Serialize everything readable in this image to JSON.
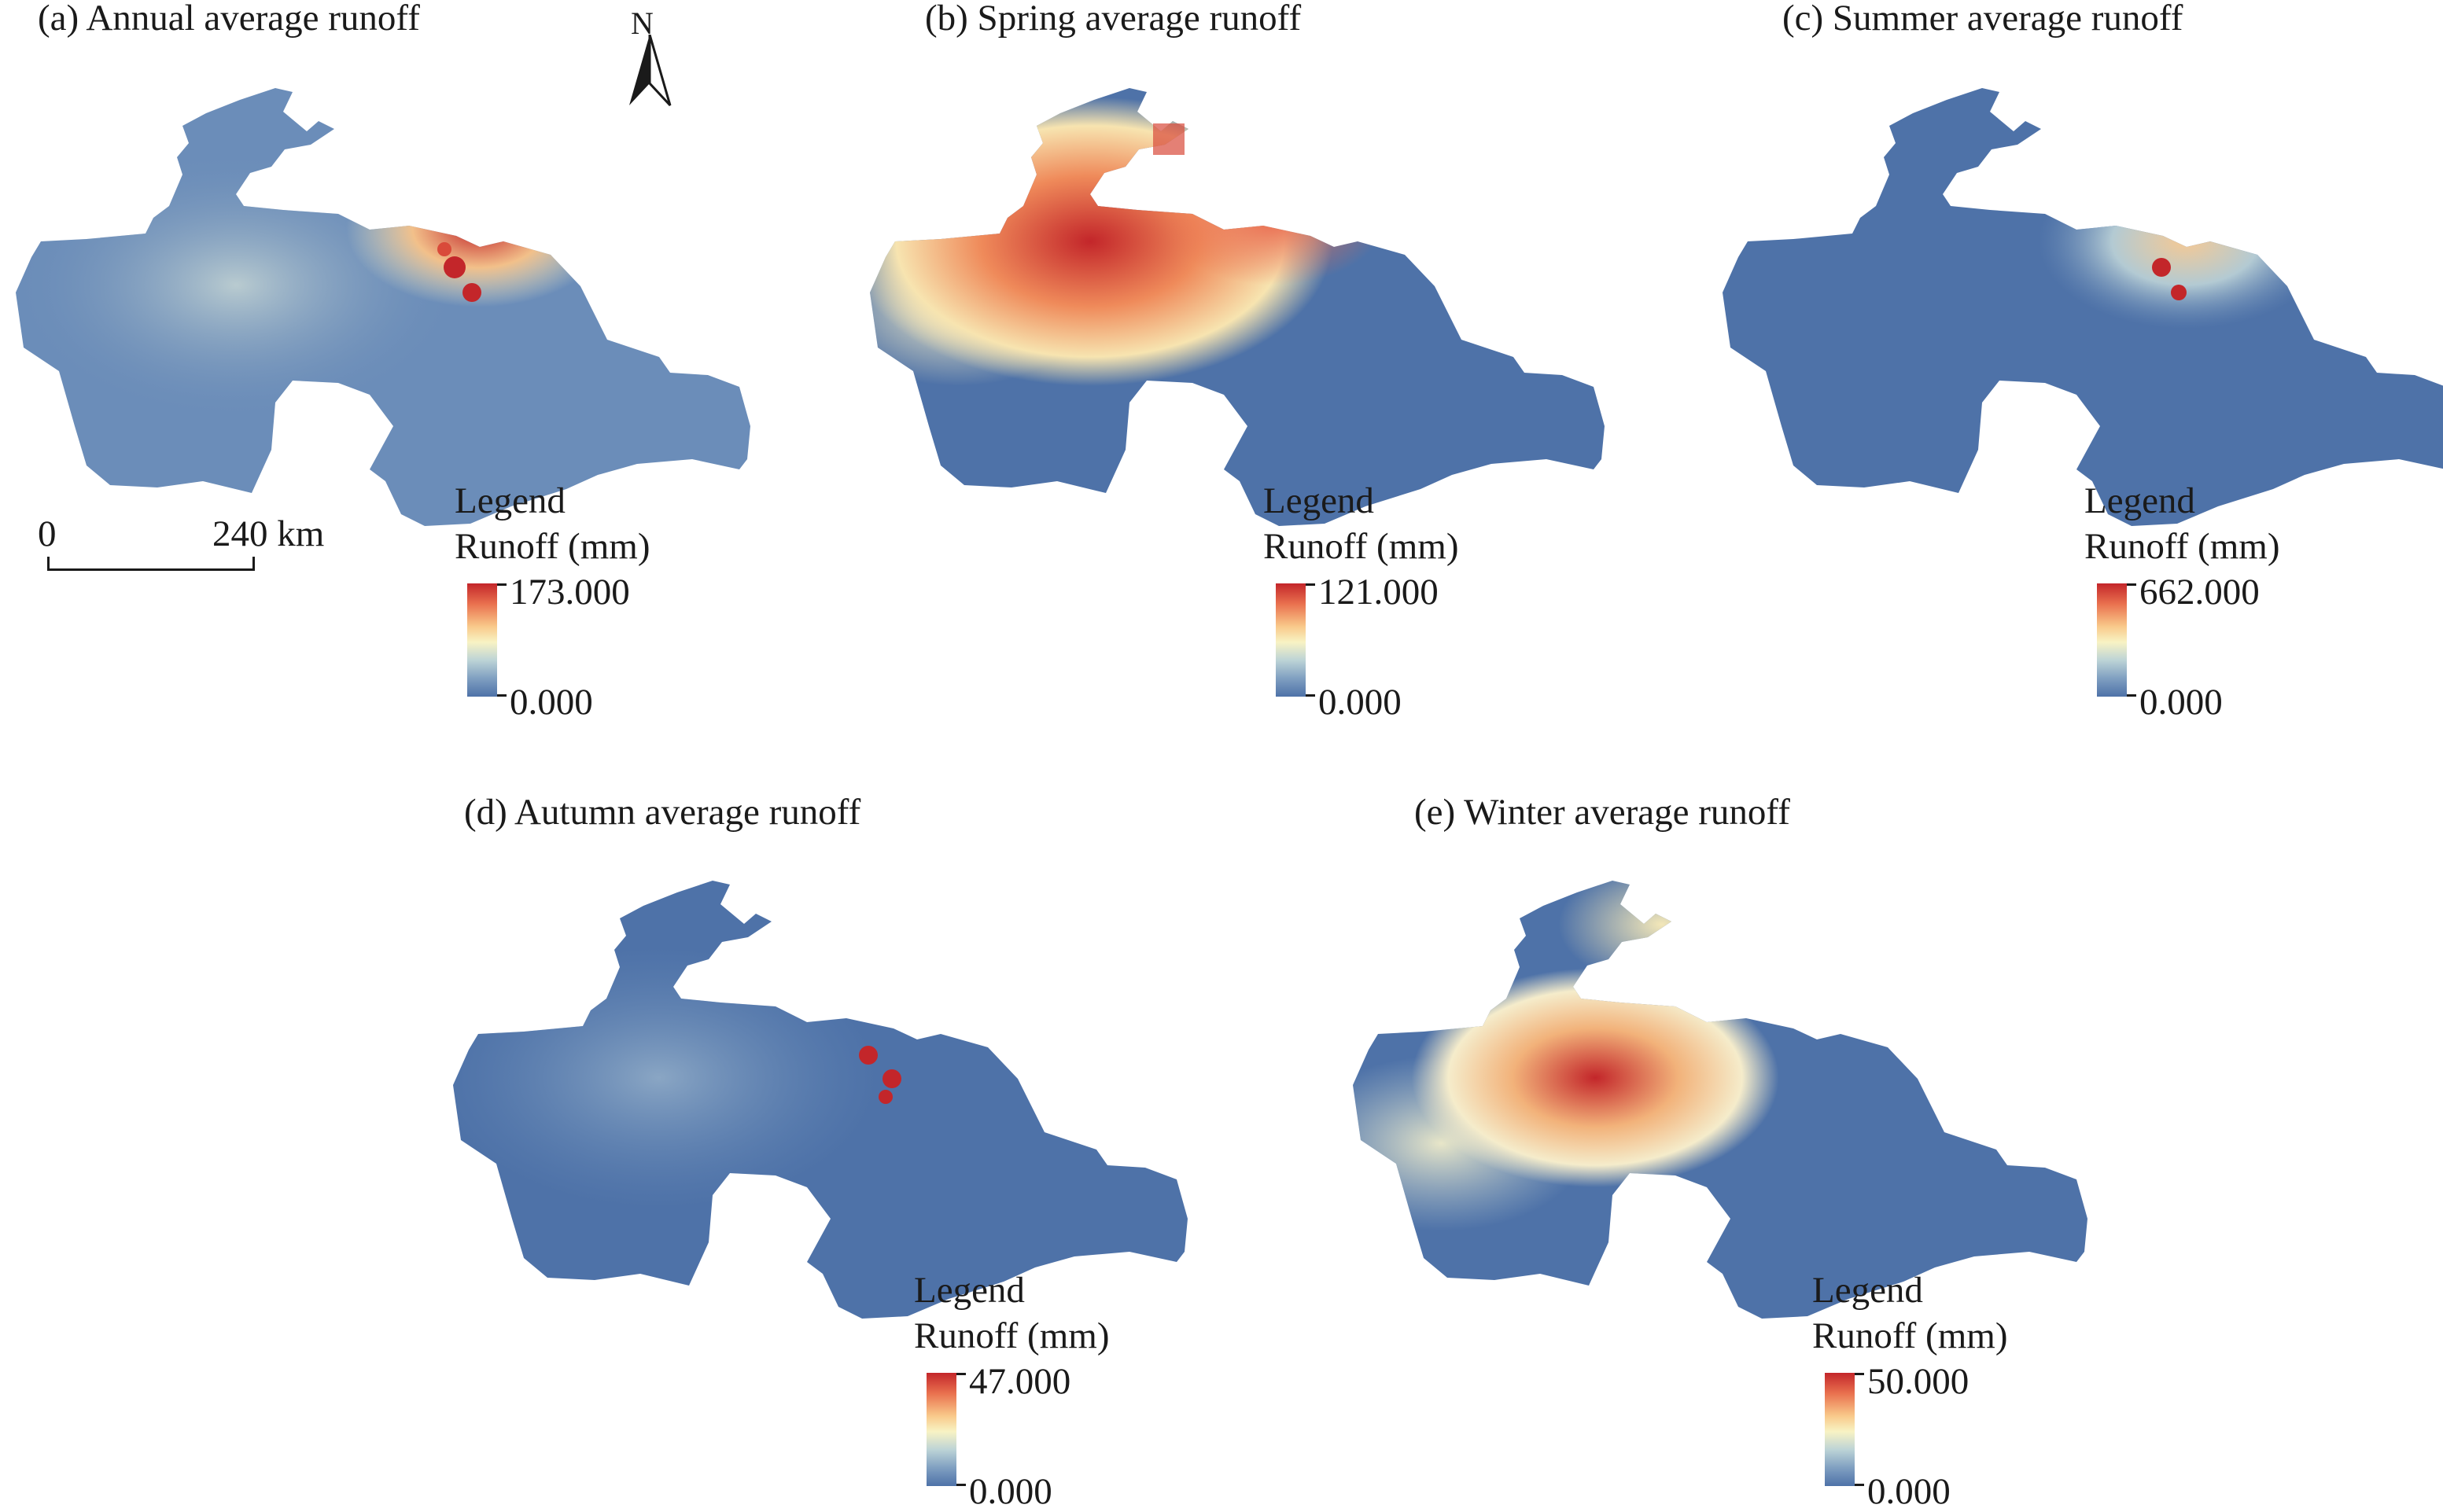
{
  "figure": {
    "panels": [
      {
        "id": "a",
        "title": "(a) Annual average runoff",
        "legend_heading": "Legend",
        "legend_unit": "Runoff (mm)",
        "max_label": "173.000",
        "min_label": "0.000",
        "max_value": 173,
        "min_value": 0
      },
      {
        "id": "b",
        "title": "(b) Spring average runoff",
        "legend_heading": "Legend",
        "legend_unit": "Runoff (mm)",
        "max_label": "121.000",
        "min_label": "0.000",
        "max_value": 121,
        "min_value": 0
      },
      {
        "id": "c",
        "title": "(c) Summer average runoff",
        "legend_heading": "Legend",
        "legend_unit": "Runoff (mm)",
        "max_label": "662.000",
        "min_label": "0.000",
        "max_value": 662,
        "min_value": 0
      },
      {
        "id": "d",
        "title": "(d) Autumn average runoff",
        "legend_heading": "Legend",
        "legend_unit": "Runoff (mm)",
        "max_label": "47.000",
        "min_label": "0.000",
        "max_value": 47,
        "min_value": 0
      },
      {
        "id": "e",
        "title": "(e) Winter average runoff",
        "legend_heading": "Legend",
        "legend_unit": "Runoff (mm)",
        "max_label": "50.000",
        "min_label": "0.000",
        "max_value": 50,
        "min_value": 0
      }
    ],
    "north_arrow": {
      "label": "N"
    },
    "scale_bar": {
      "start_label": "0",
      "end_label": "240 km"
    },
    "colors": {
      "low": "#4e72a8",
      "mid": "#f8f3c4",
      "high": "#c3262a"
    }
  }
}
